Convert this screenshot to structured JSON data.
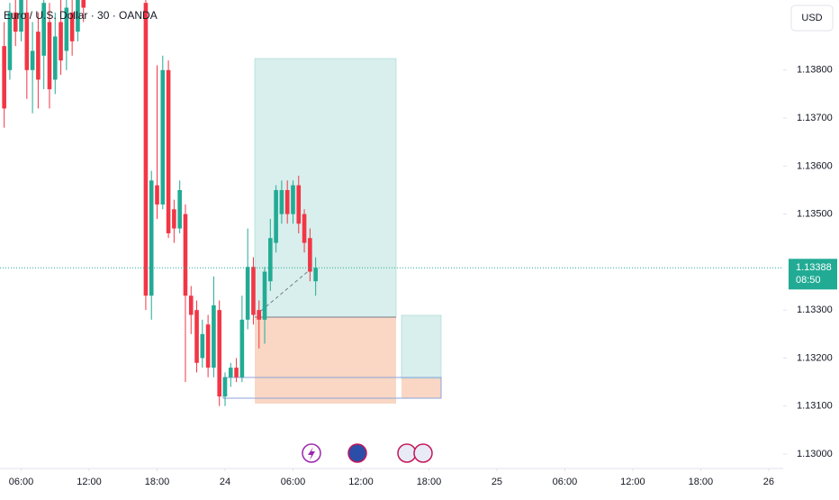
{
  "chart_data": {
    "type": "candlestick",
    "title": "Euro / U.S. Dollar · 30 · OANDA",
    "currency": "USD",
    "last_price": 1.13388,
    "countdown": "08:50",
    "up_color": "#22ab94",
    "down_color": "#f23645",
    "xlim": [
      28.13,
      97.28
    ],
    "ylim": [
      1.1297,
      1.13946
    ],
    "grid": false,
    "xticks": [
      {
        "value": 30,
        "label": "06:00"
      },
      {
        "value": 36,
        "label": "12:00"
      },
      {
        "value": 42,
        "label": "18:00"
      },
      {
        "value": 48,
        "label": "24"
      },
      {
        "value": 54,
        "label": "06:00"
      },
      {
        "value": 60,
        "label": "12:00"
      },
      {
        "value": 66,
        "label": "18:00"
      },
      {
        "value": 72,
        "label": "25"
      },
      {
        "value": 78,
        "label": "06:00"
      },
      {
        "value": 84,
        "label": "12:00"
      },
      {
        "value": 90,
        "label": "18:00"
      },
      {
        "value": 96,
        "label": "26"
      }
    ],
    "yticks": [
      {
        "value": 1.138,
        "label": "1.13800"
      },
      {
        "value": 1.137,
        "label": "1.13700"
      },
      {
        "value": 1.136,
        "label": "1.13600"
      },
      {
        "value": 1.135,
        "label": "1.13500"
      },
      {
        "value": 1.133,
        "label": "1.13300"
      },
      {
        "value": 1.132,
        "label": "1.13200"
      },
      {
        "value": 1.131,
        "label": "1.13100"
      },
      {
        "value": 1.13,
        "label": "1.13000"
      }
    ],
    "x": [
      28.5,
      29,
      29.5,
      30,
      30.5,
      31,
      31.5,
      32,
      32.5,
      33,
      33.5,
      34,
      34.5,
      35,
      35.5,
      41,
      41.5,
      42,
      42.5,
      43,
      43.5,
      44,
      44.5,
      45,
      45.5,
      46,
      46.5,
      47,
      47.5,
      48,
      48.5,
      49,
      49.5,
      50,
      50.5,
      51,
      51.5,
      52,
      52.5,
      53,
      53.5,
      54,
      54.5,
      55,
      55.5,
      56
    ],
    "open": [
      1.1385,
      1.138,
      1.1392,
      1.1388,
      1.1392,
      1.138,
      1.1388,
      1.1383,
      1.139,
      1.1378,
      1.139,
      1.1384,
      1.1392,
      1.1388,
      1.1396,
      1.1394,
      1.1333,
      1.1356,
      1.1352,
      1.138,
      1.1351,
      1.1347,
      1.135,
      1.1333,
      1.133,
      1.132,
      1.1327,
      1.1318,
      1.133,
      1.1312,
      1.1316,
      1.1318,
      1.1316,
      1.1328,
      1.1339,
      1.133,
      1.1328,
      1.1336,
      1.1344,
      1.135,
      1.1355,
      1.135,
      1.1356,
      1.135,
      1.1345,
      1.1336
    ],
    "high": [
      1.139,
      1.1394,
      1.1396,
      1.1398,
      1.1395,
      1.139,
      1.1392,
      1.1396,
      1.1394,
      1.1392,
      1.1395,
      1.1398,
      1.1396,
      1.1399,
      1.14,
      1.1396,
      1.1359,
      1.1381,
      1.1383,
      1.1382,
      1.1353,
      1.1357,
      1.1352,
      1.1335,
      1.1332,
      1.1328,
      1.1329,
      1.1337,
      1.1332,
      1.1317,
      1.1319,
      1.132,
      1.1333,
      1.1347,
      1.1341,
      1.1332,
      1.1339,
      1.1349,
      1.1356,
      1.1357,
      1.1357,
      1.1357,
      1.1358,
      1.1351,
      1.1347,
      1.1341
    ],
    "low": [
      1.1368,
      1.1378,
      1.1385,
      1.1386,
      1.1374,
      1.1371,
      1.1372,
      1.1376,
      1.1372,
      1.1375,
      1.1379,
      1.138,
      1.1383,
      1.1386,
      1.139,
      1.133,
      1.1328,
      1.1349,
      1.1351,
      1.1345,
      1.1344,
      1.1346,
      1.1315,
      1.1325,
      1.1317,
      1.1318,
      1.1316,
      1.1316,
      1.131,
      1.131,
      1.1314,
      1.1315,
      1.1315,
      1.1326,
      1.1327,
      1.1322,
      1.1323,
      1.1334,
      1.1342,
      1.1348,
      1.1348,
      1.1348,
      1.1346,
      1.1342,
      1.1336,
      1.1333
    ],
    "close": [
      1.1372,
      1.1392,
      1.1388,
      1.1395,
      1.138,
      1.1384,
      1.1378,
      1.1394,
      1.1376,
      1.1387,
      1.1382,
      1.1393,
      1.1386,
      1.1397,
      1.1393,
      1.1333,
      1.1357,
      1.1352,
      1.138,
      1.1346,
      1.1347,
      1.1355,
      1.1333,
      1.1329,
      1.1319,
      1.1325,
      1.1318,
      1.1331,
      1.1312,
      1.1316,
      1.1318,
      1.1316,
      1.1328,
      1.1339,
      1.1329,
      1.1328,
      1.1338,
      1.1345,
      1.1355,
      1.1355,
      1.135,
      1.1356,
      1.1348,
      1.1344,
      1.1338,
      1.13388
    ]
  }
}
